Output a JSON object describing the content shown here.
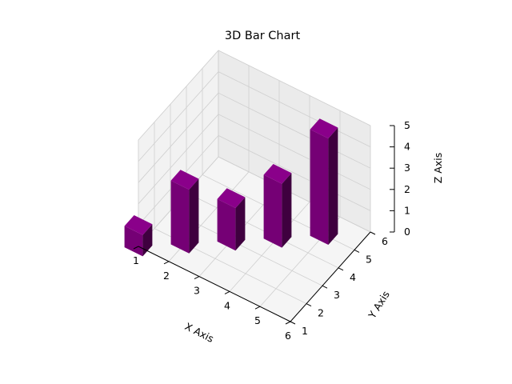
{
  "chart_data": {
    "type": "bar3d",
    "title": "3D Bar Chart",
    "xlabel": "X Axis",
    "ylabel": "Y Axis",
    "zlabel": "Z Axis",
    "x_ticks": [
      "1",
      "2",
      "3",
      "4",
      "5",
      "6"
    ],
    "y_ticks": [
      "1",
      "2",
      "3",
      "4",
      "5",
      "6"
    ],
    "z_ticks": [
      "0",
      "1",
      "2",
      "3",
      "4",
      "5"
    ],
    "xlim": [
      1,
      6
    ],
    "ylim": [
      1,
      6
    ],
    "zlim": [
      0,
      5
    ],
    "grid": true,
    "bar_color": "#800080",
    "bars": [
      {
        "x": 1,
        "y": 1,
        "z": 1
      },
      {
        "x": 2,
        "y": 2,
        "z": 3
      },
      {
        "x": 3,
        "y": 3,
        "z": 2
      },
      {
        "x": 4,
        "y": 4,
        "z": 3
      },
      {
        "x": 5,
        "y": 5,
        "z": 5
      }
    ]
  }
}
